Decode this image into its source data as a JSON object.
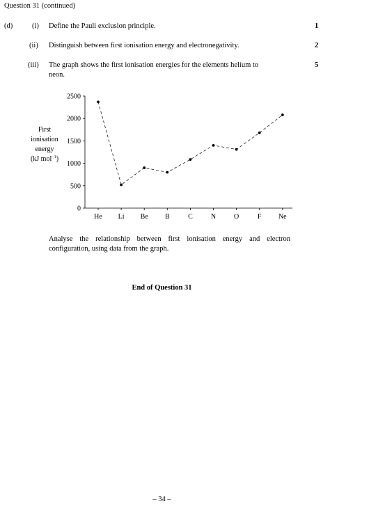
{
  "header": {
    "continued": "Question 31 (continued)"
  },
  "part": {
    "label": "(d)",
    "items": [
      {
        "num": "(i)",
        "text": "Define the Pauli exclusion principle.",
        "marks": "1"
      },
      {
        "num": "(ii)",
        "text": "Distinguish between first ionisation energy and electronegativity.",
        "marks": "2"
      },
      {
        "num": "(iii)",
        "text_line1": "The graph shows the first ionisation energies for the elements helium to",
        "text_line2": "neon.",
        "marks": "5"
      }
    ]
  },
  "chart_data": {
    "type": "line",
    "title": "",
    "ylabel_lines": [
      "First",
      "ionisation",
      "energy",
      "(kJ mol",
      "–1",
      ")"
    ],
    "xlabel": "",
    "categories": [
      "He",
      "Li",
      "Be",
      "B",
      "C",
      "N",
      "O",
      "F",
      "Ne"
    ],
    "yticks": [
      "0",
      "500",
      "1000",
      "1500",
      "2000",
      "2500"
    ],
    "ylim": [
      0,
      2500
    ],
    "line_style": "dashed",
    "marker": "dot",
    "series": [
      {
        "values": [
          2370,
          520,
          900,
          800,
          1085,
          1400,
          1310,
          1680,
          2080
        ]
      }
    ]
  },
  "analyse_line1": "Analyse the relationship between first ionisation energy and electron",
  "analyse_line2": "configuration, using data from the graph.",
  "end_note": "End of Question 31",
  "page_number": "– 34 –"
}
